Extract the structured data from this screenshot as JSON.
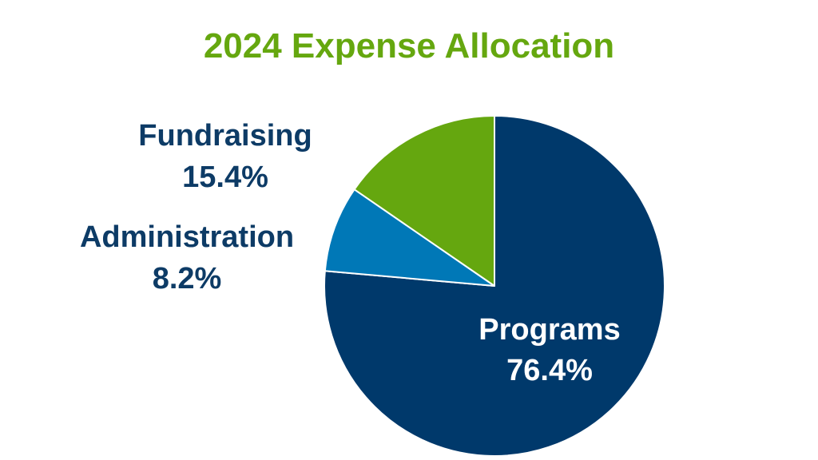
{
  "chart_data": {
    "type": "pie",
    "title": "2024 Expense Allocation",
    "start_angle_deg": 0,
    "direction": "clockwise",
    "slices": [
      {
        "label": "Programs",
        "value": 76.4,
        "value_label": "76.4%",
        "color": "#00396b"
      },
      {
        "label": "Administration",
        "value": 8.2,
        "value_label": "8.2%",
        "color": "#0078b7"
      },
      {
        "label": "Fundraising",
        "value": 15.4,
        "value_label": "15.4%",
        "color": "#65a70f"
      }
    ],
    "label_colors": {
      "inside": "#ffffff",
      "outside": "#0d3b66"
    }
  }
}
